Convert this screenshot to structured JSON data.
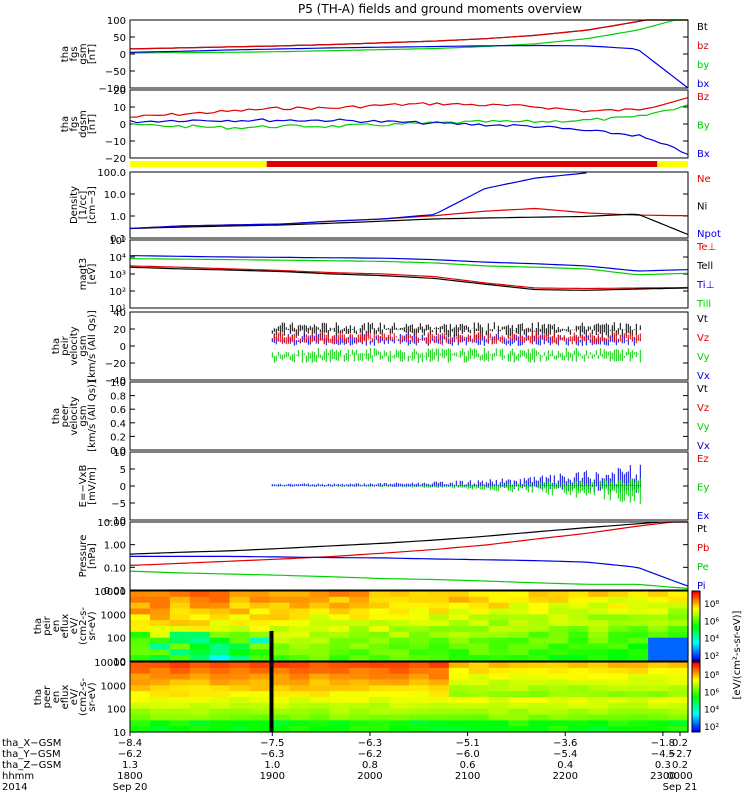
{
  "title": "P5 (TH-A) fields and ground moments overview",
  "colors": {
    "black": "#000000",
    "red": "#e00000",
    "green": "#00d000",
    "blue": "#0000e0",
    "yellow": "#ffff00"
  },
  "chart_data": [
    {
      "type": "line",
      "panel": "fgs_gsm",
      "ylabel": [
        "tha",
        "fgs",
        "gsm",
        "[nT]"
      ],
      "ylim": [
        -100,
        100
      ],
      "yticks": [
        "100",
        "50",
        "0",
        "−50",
        "−100"
      ],
      "series": [
        {
          "name": "Bt",
          "color": "black",
          "values": [
            15,
            18,
            21,
            24,
            28,
            33,
            38,
            45,
            55,
            70,
            95,
            130
          ]
        },
        {
          "name": "bz",
          "color": "red",
          "values": [
            15,
            18,
            21,
            24,
            28,
            33,
            38,
            45,
            55,
            70,
            95,
            130
          ]
        },
        {
          "name": "by",
          "color": "green",
          "values": [
            3,
            4,
            5,
            7,
            10,
            13,
            16,
            22,
            30,
            45,
            70,
            110
          ]
        },
        {
          "name": "bx",
          "color": "blue",
          "values": [
            5,
            8,
            12,
            15,
            18,
            20,
            22,
            24,
            25,
            24,
            15,
            -100
          ]
        }
      ]
    },
    {
      "type": "line",
      "panel": "fgs_dgsm",
      "ylabel": [
        "tha",
        "fgs",
        "dgsm",
        "[nT]"
      ],
      "ylim": [
        -25,
        20
      ],
      "yticks": [
        "20",
        "10",
        "0",
        "−10",
        "−20"
      ],
      "series": [
        {
          "name": "Bz",
          "color": "red",
          "values": [
            2,
            4,
            6,
            8,
            8,
            10,
            11,
            10,
            9,
            6,
            7,
            15
          ]
        },
        {
          "name": "By",
          "color": "green",
          "values": [
            -3,
            -4,
            -5,
            -4,
            -4,
            -3,
            -2,
            -1,
            -1,
            0,
            2,
            10
          ]
        },
        {
          "name": "Bx",
          "color": "blue",
          "values": [
            -1,
            0,
            0,
            0,
            0,
            -1,
            -2,
            -3,
            -4,
            -7,
            -10,
            -22
          ]
        }
      ]
    },
    {
      "type": "line",
      "panel": "density",
      "ylabel": [
        "Density",
        "[1/cc]",
        "[cm−3]"
      ],
      "yscale": "log",
      "ylim": [
        0.1,
        200
      ],
      "yticks": [
        "100.0",
        "10.0",
        "1.0",
        "0.1"
      ],
      "series": [
        {
          "name": "Ne",
          "color": "red",
          "values": [
            0.3,
            0.4,
            0.45,
            0.5,
            0.7,
            0.9,
            1.3,
            2.2,
            3,
            1.8,
            1.4,
            1.3
          ]
        },
        {
          "name": "Ni",
          "color": "black",
          "values": [
            0.3,
            0.35,
            0.4,
            0.45,
            0.55,
            0.7,
            0.9,
            1,
            1.1,
            1.2,
            1.6,
            0.15
          ]
        },
        {
          "name": "Npot",
          "color": "blue",
          "values": [
            0.3,
            0.4,
            0.45,
            0.5,
            0.7,
            0.9,
            1.5,
            30,
            100,
            180
          ]
        }
      ]
    },
    {
      "type": "line",
      "panel": "temperature",
      "ylabel": [
        "magt3",
        "[eV]"
      ],
      "yscale": "log",
      "ylim": [
        10,
        100000
      ],
      "yticks": [
        "10⁵",
        "10⁴",
        "10³",
        "10²",
        "10¹"
      ],
      "series": [
        {
          "name": "Te⊥",
          "color": "red",
          "values": [
            3000,
            2500,
            2000,
            1600,
            1200,
            1000,
            700,
            300,
            150,
            140,
            150,
            160
          ]
        },
        {
          "name": "Tell",
          "color": "black",
          "values": [
            2500,
            2000,
            1700,
            1400,
            1000,
            800,
            550,
            250,
            120,
            110,
            130,
            150
          ]
        },
        {
          "name": "Ti⊥",
          "color": "blue",
          "values": [
            12000,
            11000,
            10000,
            9500,
            9000,
            8500,
            7000,
            5000,
            4000,
            3000,
            1500,
            1800
          ]
        },
        {
          "name": "Till",
          "color": "green",
          "values": [
            8000,
            7500,
            7000,
            6500,
            6000,
            5500,
            4500,
            3000,
            2500,
            2000,
            900,
            1100
          ]
        }
      ]
    },
    {
      "type": "line",
      "panel": "peir_velocity",
      "ylabel": [
        "tha",
        "peir",
        "velocity",
        "gsm",
        "[km/s (All Qs)]"
      ],
      "ylim": [
        -40,
        40
      ],
      "yticks": [
        "40",
        "20",
        "0",
        "−20",
        "−40"
      ],
      "series": [
        {
          "name": "Vt",
          "color": "black"
        },
        {
          "name": "Vz",
          "color": "red"
        },
        {
          "name": "Vy",
          "color": "green"
        },
        {
          "name": "Vx",
          "color": "blue"
        }
      ]
    },
    {
      "type": "line",
      "panel": "peer_velocity",
      "ylabel": [
        "tha",
        "peer",
        "velocity",
        "gsm",
        "[km/s (All Qs)]"
      ],
      "ylim": [
        0,
        1
      ],
      "yticks": [
        "1.0",
        "0.8",
        "0.6",
        "0.4",
        "0.2",
        "0.0"
      ],
      "series": [
        {
          "name": "Vt",
          "color": "black"
        },
        {
          "name": "Vz",
          "color": "red"
        },
        {
          "name": "Vy",
          "color": "green"
        },
        {
          "name": "Vx",
          "color": "blue"
        }
      ]
    },
    {
      "type": "line",
      "panel": "efield",
      "ylabel": [
        "E=−VxB",
        "[mV/m]"
      ],
      "ylim": [
        -10,
        10
      ],
      "yticks": [
        "10",
        "5",
        "0",
        "−5",
        "−10"
      ],
      "series": [
        {
          "name": "Ez",
          "color": "red"
        },
        {
          "name": "Ey",
          "color": "green"
        },
        {
          "name": "Ex",
          "color": "blue"
        }
      ]
    },
    {
      "type": "line",
      "panel": "pressure",
      "ylabel": [
        "Pressure",
        "[nPa]"
      ],
      "yscale": "log",
      "ylim": [
        0.005,
        20
      ],
      "yticks": [
        "10.00",
        "1.00",
        "0.10",
        "0.01"
      ],
      "series": [
        {
          "name": "Pt",
          "color": "black",
          "values": [
            0.4,
            0.5,
            0.6,
            0.8,
            1.1,
            1.5,
            2.2,
            3.5,
            6,
            10,
            16,
            25
          ]
        },
        {
          "name": "Pb",
          "color": "red",
          "values": [
            0.1,
            0.13,
            0.17,
            0.22,
            0.3,
            0.45,
            0.7,
            1.2,
            2.5,
            5,
            12,
            25
          ]
        },
        {
          "name": "Pe",
          "color": "green",
          "values": [
            0.05,
            0.04,
            0.035,
            0.03,
            0.025,
            0.02,
            0.018,
            0.015,
            0.012,
            0.01,
            0.01,
            0.006
          ]
        },
        {
          "name": "Pi",
          "color": "blue",
          "values": [
            0.3,
            0.3,
            0.3,
            0.28,
            0.26,
            0.25,
            0.22,
            0.2,
            0.18,
            0.15,
            0.08,
            0.008
          ]
        }
      ]
    },
    {
      "type": "heatmap",
      "panel": "peir_spectrogram",
      "ylabel": [
        "tha",
        "peir",
        "en",
        "eflux",
        "eV/",
        "(cm2-s-",
        "sr-eV)"
      ],
      "yscale": "log",
      "yticks": [
        "10000",
        "1000",
        "100",
        "10"
      ]
    },
    {
      "type": "heatmap",
      "panel": "peer_spectrogram",
      "ylabel": [
        "tha",
        "peer",
        "en",
        "eflux",
        "eV/",
        "(cm2-s-",
        "sr-eV)"
      ],
      "yscale": "log",
      "yticks": [
        "10000",
        "1000",
        "100",
        "10"
      ]
    }
  ],
  "colorbar": {
    "label": "[eV/(cm²-s-sr-eV)]",
    "ion_ticks": [
      "10⁸",
      "10⁶",
      "10⁴",
      "10²"
    ],
    "electron_ticks": [
      "10⁸",
      "10⁶",
      "10⁴",
      "10²"
    ]
  },
  "xaxis": {
    "rows": [
      {
        "label": "tha_X−GSM",
        "values": [
          "−8.4",
          "−7.5",
          "−6.3",
          "−5.1",
          "−3.6",
          "−1.8",
          "0.2"
        ]
      },
      {
        "label": "tha_Y−GSM",
        "values": [
          "−6.2",
          "−6.3",
          "−6.2",
          "−6.0",
          "−5.4",
          "−4.5",
          "−2.7"
        ]
      },
      {
        "label": "tha_Z−GSM",
        "values": [
          "1.3",
          "1.0",
          "0.8",
          "0.6",
          "0.4",
          "0.3",
          "0.2"
        ]
      },
      {
        "label": "hhmm",
        "values": [
          "1800",
          "1900",
          "2000",
          "2100",
          "2200",
          "2300",
          "0000"
        ]
      }
    ],
    "year": "2014",
    "date_start": "Sep 20",
    "date_end": "Sep 21"
  }
}
